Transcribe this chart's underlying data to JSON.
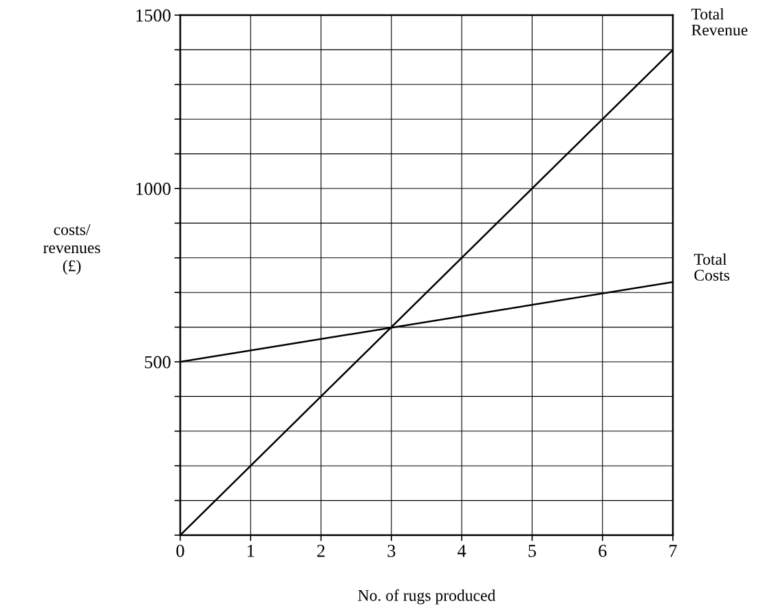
{
  "chart_data": {
    "type": "line",
    "xlabel": "No. of rugs produced",
    "ylabel": "costs/\nrevenues\n(£)",
    "x": [
      0,
      7
    ],
    "series": [
      {
        "name": "Total\nRevenue",
        "color": "#000000",
        "values": [
          0,
          1400
        ]
      },
      {
        "name": "Total\nCosts",
        "color": "#000000",
        "values": [
          500,
          730
        ]
      }
    ],
    "xlim": [
      0,
      7
    ],
    "xticks": [
      0,
      1,
      2,
      3,
      4,
      5,
      6,
      7
    ],
    "ylim": [
      0,
      1500
    ],
    "yticks": [
      {
        "value": 0,
        "label": null
      },
      {
        "value": 100,
        "label": null
      },
      {
        "value": 200,
        "label": null
      },
      {
        "value": 300,
        "label": null
      },
      {
        "value": 400,
        "label": null
      },
      500,
      {
        "value": 600,
        "label": null
      },
      {
        "value": 700,
        "label": null
      },
      {
        "value": 800,
        "label": null
      },
      {
        "value": 900,
        "label": null
      },
      1000,
      {
        "value": 1100,
        "label": null
      },
      {
        "value": 1200,
        "label": null
      },
      {
        "value": 1300,
        "label": null
      },
      {
        "value": 1400,
        "label": null
      },
      1500
    ],
    "grid": true,
    "marker": "none",
    "line_style": "solid",
    "legend": false
  }
}
